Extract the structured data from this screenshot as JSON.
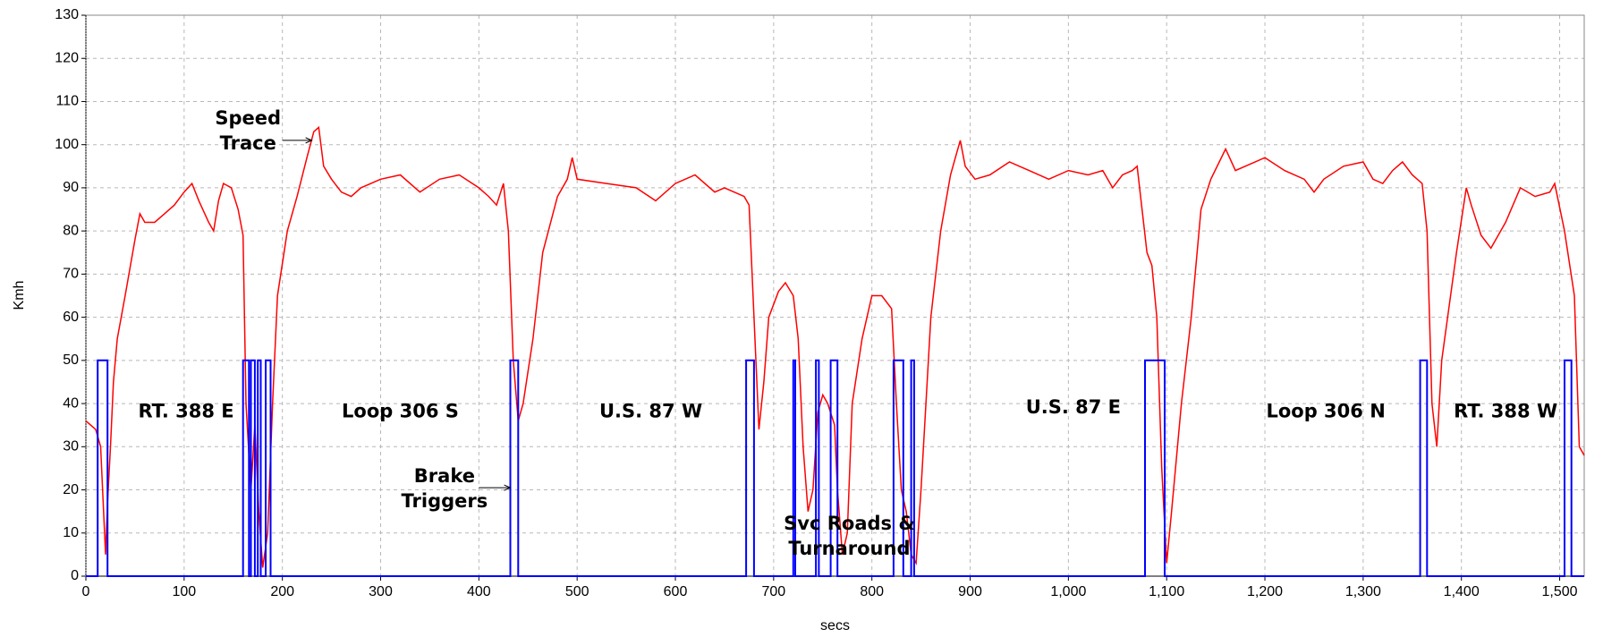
{
  "chart_data": {
    "type": "line",
    "xlabel": "secs",
    "ylabel": "Kmh",
    "xlim": [
      0,
      1525
    ],
    "ylim": [
      0,
      130
    ],
    "xticks": [
      0,
      100,
      200,
      300,
      400,
      500,
      600,
      700,
      800,
      900,
      {
        "value": 1000,
        "label": "1,000"
      },
      {
        "value": 1100,
        "label": "1,100"
      },
      {
        "value": 1200,
        "label": "1,200"
      },
      {
        "value": 1300,
        "label": "1,300"
      },
      {
        "value": 1400,
        "label": "1,400"
      },
      {
        "value": 1500,
        "label": "1,500"
      }
    ],
    "yticks": [
      0,
      10,
      20,
      30,
      40,
      50,
      60,
      70,
      80,
      90,
      100,
      110,
      120,
      130
    ],
    "grid": true,
    "annotations": [
      [
        "Speed",
        "Trace"
      ],
      [
        "RT. 388  E"
      ],
      [
        "Loop 306 S"
      ],
      [
        "U.S. 87 W"
      ],
      [
        "Brake",
        "Triggers"
      ],
      [
        "Svc Roads &",
        "Turnaround"
      ],
      [
        "U.S. 87 E"
      ],
      [
        "Loop 306 N"
      ],
      [
        "RT. 388 W"
      ]
    ],
    "series": [
      {
        "color": "#ff0000",
        "x": [
          0,
          10,
          15,
          18,
          20,
          22,
          25,
          28,
          32,
          40,
          50,
          55,
          60,
          70,
          80,
          90,
          100,
          108,
          115,
          125,
          130,
          135,
          140,
          148,
          155,
          160,
          163,
          168,
          172,
          176,
          180,
          185,
          190,
          195,
          205,
          215,
          225,
          232,
          237,
          242,
          250,
          260,
          270,
          280,
          300,
          320,
          340,
          360,
          380,
          400,
          410,
          418,
          425,
          430,
          435,
          440,
          445,
          455,
          465,
          480,
          490,
          495,
          500,
          530,
          560,
          580,
          600,
          620,
          640,
          650,
          670,
          675,
          680,
          685,
          690,
          695,
          705,
          712,
          720,
          725,
          730,
          735,
          740,
          745,
          750,
          755,
          762,
          765,
          770,
          775,
          780,
          790,
          800,
          810,
          820,
          825,
          830,
          835,
          840,
          845,
          850,
          860,
          870,
          880,
          885,
          890,
          895,
          905,
          920,
          940,
          960,
          980,
          1000,
          1020,
          1035,
          1045,
          1055,
          1065,
          1070,
          1075,
          1080,
          1085,
          1090,
          1095,
          1100,
          1105,
          1115,
          1125,
          1135,
          1145,
          1160,
          1170,
          1180,
          1200,
          1220,
          1240,
          1250,
          1260,
          1280,
          1300,
          1310,
          1320,
          1330,
          1340,
          1350,
          1360,
          1365,
          1370,
          1375,
          1380,
          1395,
          1405,
          1410,
          1420,
          1430,
          1445,
          1460,
          1475,
          1490,
          1495,
          1505,
          1515,
          1520,
          1525
        ],
        "values": [
          36,
          34,
          30,
          15,
          5,
          17,
          30,
          45,
          55,
          65,
          78,
          84,
          82,
          82,
          84,
          86,
          89,
          91,
          87,
          82,
          80,
          87,
          91,
          90,
          85,
          79,
          40,
          20,
          35,
          15,
          2,
          10,
          40,
          65,
          80,
          88,
          97,
          103,
          104,
          95,
          92,
          89,
          88,
          90,
          92,
          93,
          89,
          92,
          93,
          90,
          88,
          86,
          91,
          80,
          50,
          36,
          40,
          55,
          75,
          88,
          92,
          97,
          92,
          91,
          90,
          87,
          91,
          93,
          89,
          90,
          88,
          86,
          60,
          34,
          45,
          60,
          66,
          68,
          65,
          55,
          30,
          15,
          20,
          38,
          42,
          40,
          35,
          20,
          5,
          10,
          40,
          55,
          65,
          65,
          62,
          40,
          20,
          15,
          5,
          3,
          20,
          60,
          80,
          93,
          97,
          101,
          95,
          92,
          93,
          96,
          94,
          92,
          94,
          93,
          94,
          90,
          93,
          94,
          95,
          85,
          75,
          72,
          60,
          25,
          3,
          15,
          40,
          60,
          85,
          92,
          99,
          94,
          95,
          97,
          94,
          92,
          89,
          92,
          95,
          96,
          92,
          91,
          94,
          96,
          93,
          91,
          80,
          40,
          30,
          50,
          75,
          90,
          86,
          79,
          76,
          82,
          90,
          88,
          89,
          91,
          80,
          65,
          30,
          28
        ]
      },
      {
        "color": "#0000ff",
        "x": [
          0,
          12,
          12,
          22,
          22,
          160,
          160,
          166,
          166,
          168,
          168,
          172,
          172,
          175,
          175,
          178,
          178,
          183,
          183,
          188,
          188,
          432,
          432,
          440,
          440,
          672,
          672,
          680,
          680,
          720,
          720,
          722,
          722,
          743,
          743,
          746,
          746,
          758,
          758,
          765,
          765,
          822,
          822,
          832,
          832,
          840,
          840,
          843,
          843,
          1078,
          1078,
          1098,
          1098,
          1358,
          1358,
          1365,
          1365,
          1505,
          1505,
          1512,
          1512,
          1525
        ],
        "values": [
          0,
          0,
          50,
          50,
          0,
          0,
          50,
          50,
          0,
          0,
          50,
          50,
          0,
          0,
          50,
          50,
          0,
          0,
          50,
          50,
          0,
          0,
          50,
          50,
          0,
          0,
          50,
          50,
          0,
          0,
          50,
          50,
          0,
          0,
          50,
          50,
          0,
          0,
          50,
          50,
          0,
          0,
          50,
          50,
          0,
          0,
          50,
          50,
          0,
          0,
          50,
          50,
          0,
          0,
          50,
          50,
          0,
          0,
          50,
          50,
          0,
          0
        ]
      }
    ]
  }
}
